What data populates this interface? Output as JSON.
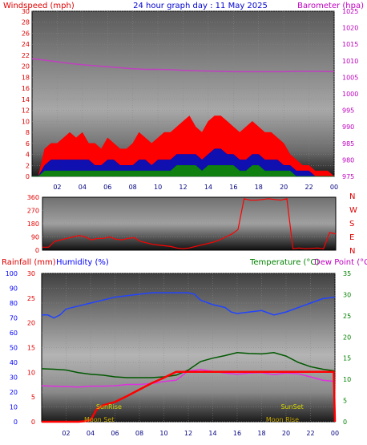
{
  "colors": {
    "wind_label": "#e00000",
    "title": "#0000d0",
    "baro_label": "#c000c0",
    "wind_gust": "#ff0000",
    "wind_avg": "#0000c0",
    "wind_low": "#008000",
    "dir": "#ff0000",
    "rain_label": "#e00000",
    "humidity_label": "#0000ff",
    "temperature_label": "#008000",
    "dew_label": "#c000c0",
    "rain": "#ff0000",
    "humidity": "#2244ff",
    "temperature": "#006000",
    "dewpoint": "#e030e0",
    "sun": "#d0d000",
    "moon": "#c0a000"
  },
  "chart_data": [
    {
      "type": "line",
      "title": "24 hour graph day : 11 May 2025",
      "ylabel_left": "Windspeed (mph)",
      "ylabel_right": "Barometer (hpa)",
      "left_ticks": [
        "0",
        "2",
        "4",
        "6",
        "8",
        "10",
        "12",
        "14",
        "16",
        "18",
        "20",
        "22",
        "24",
        "26",
        "28",
        "30"
      ],
      "right_ticks": [
        "975",
        "980",
        "985",
        "990",
        "995",
        "1000",
        "1005",
        "1010",
        "1015",
        "1020",
        "1025"
      ],
      "x_ticks": [
        "02",
        "04",
        "06",
        "08",
        "10",
        "12",
        "14",
        "16",
        "18",
        "20",
        "22",
        "00"
      ],
      "ylim": [
        0,
        30
      ],
      "ylim_right": [
        975,
        1025
      ],
      "xlim": [
        0,
        24
      ],
      "series": [
        {
          "axis": "right",
          "x": [
            0,
            1,
            2,
            3,
            4,
            5,
            6,
            7,
            8,
            9,
            10,
            11,
            12,
            13,
            14,
            15,
            16,
            17,
            18,
            19,
            20,
            21,
            22,
            23,
            24
          ],
          "values": [
            1010.6,
            1010.2,
            1009.7,
            1009.2,
            1008.8,
            1008.5,
            1008.2,
            1007.9,
            1007.6,
            1007.4,
            1007.4,
            1007.3,
            1007.1,
            1007.0,
            1006.9,
            1006.8,
            1006.7,
            1006.7,
            1006.7,
            1006.7,
            1006.7,
            1006.8,
            1006.8,
            1006.8,
            1006.7
          ]
        },
        {
          "axis": "left",
          "x": [
            0,
            0.5,
            1,
            1.5,
            2,
            2.5,
            3,
            3.5,
            4,
            4.5,
            5,
            5.5,
            6,
            6.5,
            7,
            7.5,
            8,
            8.5,
            9,
            9.5,
            10,
            10.5,
            11,
            11.5,
            12,
            12.5,
            13,
            13.5,
            14,
            14.5,
            15,
            15.5,
            16,
            16.5,
            17,
            17.5,
            18,
            18.5,
            19,
            19.5,
            20,
            20.5,
            21,
            21.5,
            22,
            22.5,
            23,
            23.5,
            24
          ],
          "values": [
            0,
            0,
            5,
            6,
            6,
            7,
            8,
            7,
            8,
            6,
            6,
            5,
            7,
            6,
            5,
            5,
            6,
            8,
            7,
            6,
            7,
            8,
            8,
            9,
            10,
            11,
            9,
            8,
            10,
            11,
            11,
            10,
            9,
            8,
            9,
            10,
            9,
            8,
            8,
            7,
            6,
            4,
            3,
            2,
            2,
            1,
            1,
            1,
            0
          ]
        },
        {
          "axis": "left",
          "x": [
            0,
            0.5,
            1,
            1.5,
            2,
            2.5,
            3,
            3.5,
            4,
            4.5,
            5,
            5.5,
            6,
            6.5,
            7,
            7.5,
            8,
            8.5,
            9,
            9.5,
            10,
            10.5,
            11,
            11.5,
            12,
            12.5,
            13,
            13.5,
            14,
            14.5,
            15,
            15.5,
            16,
            16.5,
            17,
            17.5,
            18,
            18.5,
            19,
            19.5,
            20,
            20.5,
            21,
            21.5,
            22,
            22.5,
            23,
            23.5,
            24
          ],
          "values": [
            0,
            0,
            2,
            3,
            3,
            3,
            3,
            3,
            3,
            3,
            2,
            2,
            3,
            3,
            2,
            2,
            2,
            3,
            3,
            2,
            3,
            3,
            3,
            4,
            4,
            4,
            4,
            3,
            4,
            5,
            5,
            4,
            4,
            3,
            3,
            4,
            4,
            3,
            3,
            3,
            2,
            2,
            1,
            1,
            1,
            0,
            0,
            0,
            0
          ]
        },
        {
          "axis": "left",
          "x": [
            0,
            0.5,
            1,
            1.5,
            2,
            2.5,
            3,
            3.5,
            4,
            4.5,
            5,
            5.5,
            6,
            6.5,
            7,
            7.5,
            8,
            8.5,
            9,
            9.5,
            10,
            10.5,
            11,
            11.5,
            12,
            12.5,
            13,
            13.5,
            14,
            14.5,
            15,
            15.5,
            16,
            16.5,
            17,
            17.5,
            18,
            18.5,
            19,
            19.5,
            20,
            20.5,
            21,
            21.5,
            22,
            22.5,
            23,
            23.5,
            24
          ],
          "values": [
            0,
            0,
            1,
            1,
            1,
            1,
            1,
            1,
            1,
            1,
            1,
            1,
            1,
            1,
            1,
            1,
            1,
            1,
            1,
            1,
            1,
            1,
            1,
            2,
            2,
            2,
            2,
            1,
            2,
            2,
            2,
            2,
            2,
            1,
            1,
            2,
            2,
            1,
            1,
            1,
            1,
            1,
            0,
            0,
            0,
            0,
            0,
            0,
            0
          ]
        }
      ]
    },
    {
      "type": "line",
      "left_ticks": [
        "0",
        "90",
        "180",
        "270",
        "360"
      ],
      "right_labels": [
        "N",
        "W",
        "S",
        "E",
        "N"
      ],
      "ylim": [
        0,
        360
      ],
      "xlim": [
        0,
        24
      ],
      "series": [
        {
          "x": [
            0,
            0.5,
            1,
            1.5,
            2,
            2.5,
            3,
            3.5,
            4,
            4.5,
            5,
            5.5,
            6,
            6.5,
            7,
            7.5,
            8,
            8.5,
            9,
            9.5,
            10,
            10.5,
            11,
            11.5,
            12,
            12.5,
            13,
            13.5,
            14,
            14.5,
            15,
            15.5,
            16,
            16.5,
            17,
            17.5,
            18,
            18.5,
            19,
            19.5,
            20,
            20.5,
            21,
            21.5,
            22,
            22.5,
            23,
            23.5,
            24
          ],
          "values": [
            20,
            20,
            60,
            70,
            80,
            90,
            100,
            90,
            70,
            80,
            80,
            90,
            75,
            70,
            80,
            85,
            60,
            50,
            40,
            35,
            30,
            25,
            15,
            10,
            15,
            25,
            35,
            45,
            55,
            70,
            90,
            110,
            140,
            350,
            340,
            340,
            345,
            350,
            345,
            340,
            350,
            10,
            15,
            10,
            12,
            15,
            10,
            120,
            110
          ]
        }
      ]
    },
    {
      "type": "line",
      "ylabel_rain": "Rainfall (mm)",
      "ylabel_hum": "Humidity (%)",
      "ylabel_temp": "Temperature (°C)",
      "ylabel_dew": "Dew Point (°C)",
      "hum_ticks": [
        "0",
        "10",
        "20",
        "30",
        "40",
        "50",
        "60",
        "70",
        "80",
        "90",
        "100"
      ],
      "rain_ticks": [
        "0",
        "5",
        "10",
        "15",
        "20",
        "25",
        "30"
      ],
      "temp_ticks": [
        "0",
        "5",
        "10",
        "15",
        "20",
        "25",
        "30",
        "35"
      ],
      "x_ticks": [
        "02",
        "04",
        "06",
        "08",
        "10",
        "12",
        "14",
        "16",
        "18",
        "20",
        "22",
        "00"
      ],
      "annotations": [
        "SunRise",
        "SunSet",
        "Moon Set",
        "Moon Rise"
      ],
      "series": [
        {
          "name": "Humidity",
          "axis": "humidity",
          "ylim": [
            0,
            100
          ],
          "x": [
            0,
            0.5,
            1,
            1.5,
            2,
            3,
            4,
            5,
            6,
            7,
            8,
            9,
            10,
            11,
            12,
            12.5,
            13,
            14,
            15,
            15.5,
            16,
            17,
            18,
            19,
            20,
            21,
            22,
            23,
            24
          ],
          "values": [
            72,
            72,
            70,
            72,
            76,
            78,
            80,
            82,
            84,
            85,
            86,
            87,
            87,
            87,
            87,
            86,
            82,
            79,
            77,
            74,
            73,
            74,
            75,
            72,
            74,
            77,
            80,
            83,
            84
          ]
        },
        {
          "name": "Temperature",
          "axis": "temperature",
          "ylim": [
            0,
            35
          ],
          "x": [
            0,
            1,
            2,
            3,
            4,
            5,
            6,
            7,
            8,
            9,
            10,
            11,
            12,
            13,
            14,
            15,
            16,
            17,
            18,
            19,
            20,
            21,
            22,
            23,
            24
          ],
          "values": [
            12.5,
            12.4,
            12.2,
            11.6,
            11.2,
            11.0,
            10.6,
            10.4,
            10.4,
            10.4,
            10.6,
            11.0,
            12.2,
            14.2,
            15.0,
            15.6,
            16.3,
            16.1,
            16.0,
            16.3,
            15.5,
            14.0,
            13.0,
            12.4,
            12.0
          ]
        },
        {
          "name": "Dew Point",
          "axis": "temperature",
          "ylim": [
            0,
            35
          ],
          "x": [
            0,
            1,
            2,
            3,
            4,
            5,
            6,
            7,
            8,
            9,
            10,
            11,
            12,
            13,
            14,
            15,
            16,
            17,
            18,
            19,
            20,
            21,
            22,
            23,
            24
          ],
          "values": [
            8.5,
            8.4,
            8.3,
            8.2,
            8.4,
            8.4,
            8.5,
            8.8,
            8.8,
            9.0,
            9.5,
            9.8,
            12.0,
            12.3,
            11.9,
            11.5,
            11.2,
            11.5,
            11.6,
            11.1,
            11.5,
            11.3,
            10.6,
            9.8,
            9.5
          ]
        },
        {
          "name": "Rainfall",
          "axis": "rain",
          "ylim": [
            0,
            30
          ],
          "x": [
            0,
            1,
            2,
            3,
            3.5,
            4,
            4.5,
            5,
            6,
            7,
            8,
            9,
            10,
            11,
            12,
            13,
            14,
            15,
            16,
            17,
            18,
            19,
            20,
            21,
            22,
            23,
            23.9,
            24
          ],
          "values": [
            0,
            0,
            0,
            0,
            0.1,
            0.3,
            2.5,
            3.3,
            4.0,
            5.2,
            6.5,
            7.8,
            8.9,
            10.1,
            10.1,
            10.1,
            10.1,
            10.1,
            10.1,
            10.1,
            10.1,
            10.1,
            10.1,
            10.1,
            10.1,
            10.1,
            10.1,
            0
          ]
        }
      ],
      "sunrise_x": 5.5,
      "sunset_x": 20.5,
      "moonset_x": 4.7,
      "moonrise_x": 19.7
    }
  ]
}
